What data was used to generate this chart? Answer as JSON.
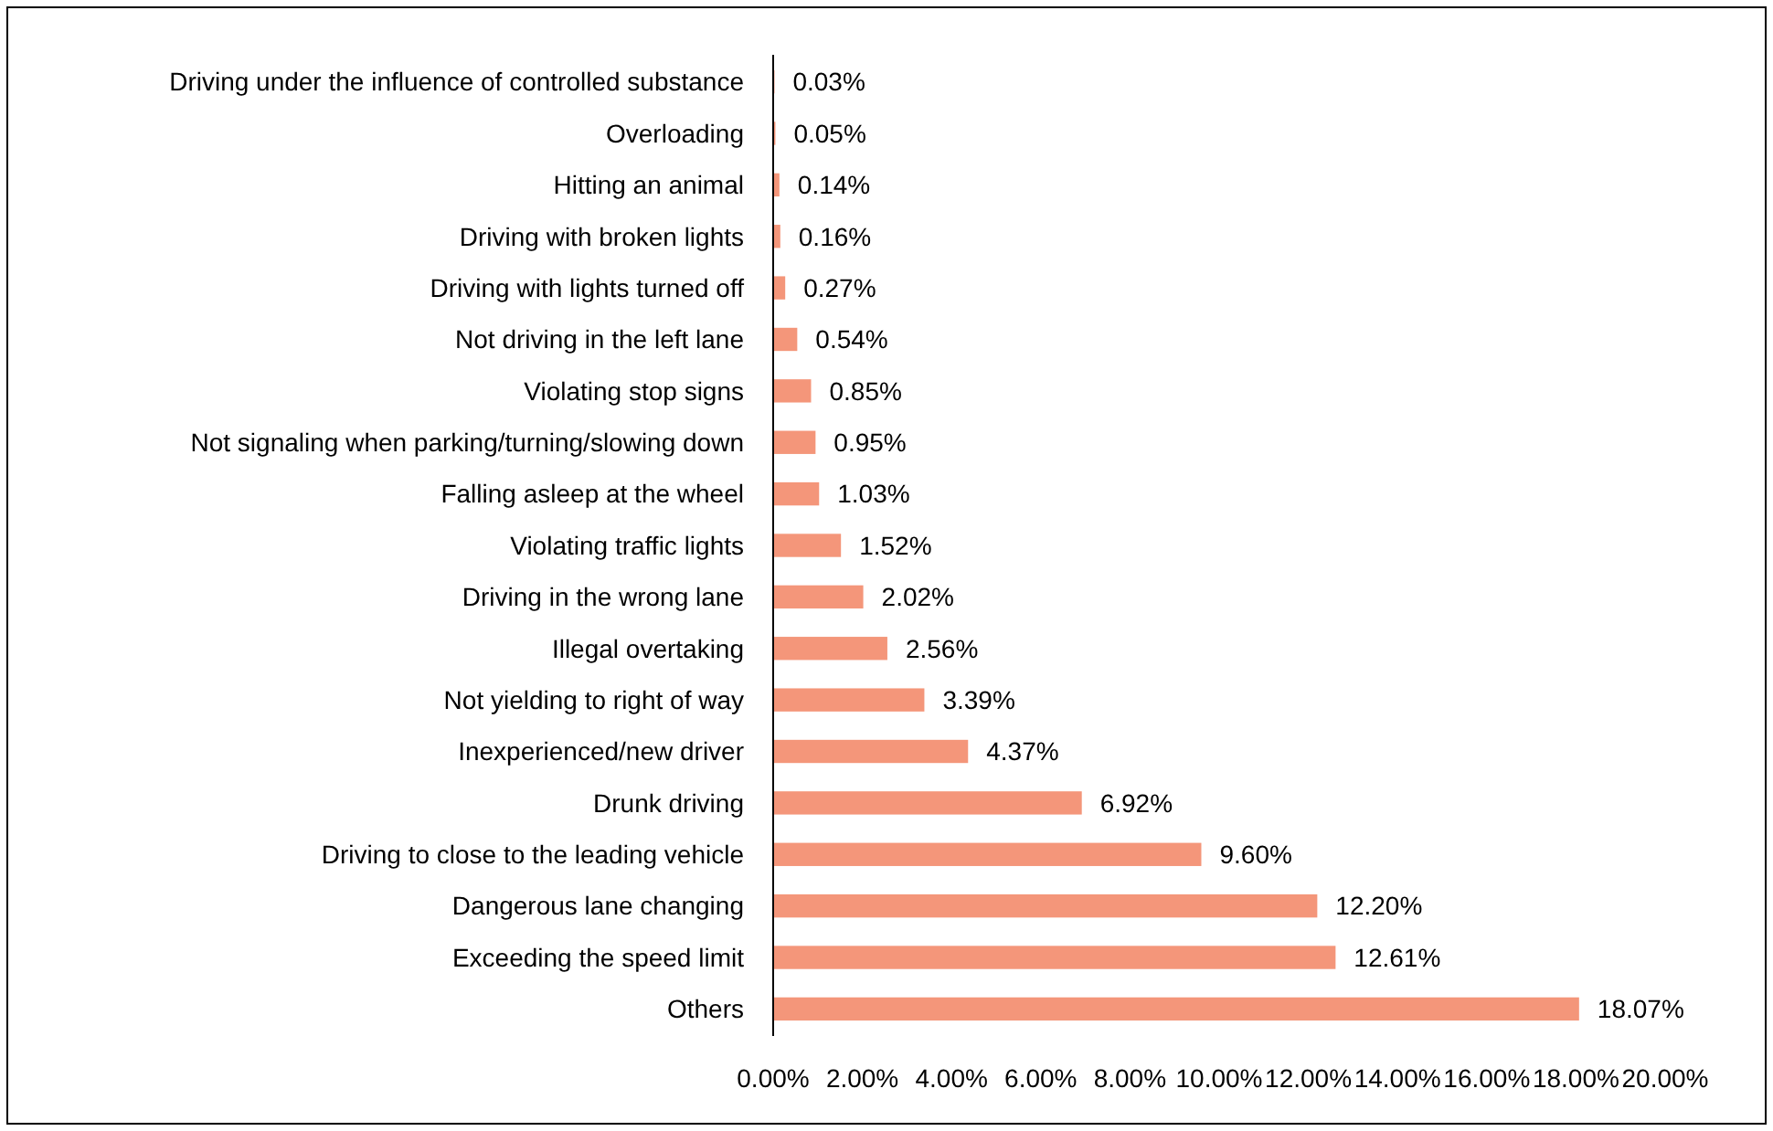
{
  "chart_data": {
    "type": "bar",
    "orientation": "horizontal",
    "categories": [
      "Driving under the influence of controlled substance",
      "Overloading",
      "Hitting an animal",
      "Driving with broken lights",
      "Driving with lights turned off",
      "Not driving in the left lane",
      "Violating stop signs",
      "Not signaling when parking/turning/slowing down",
      "Falling asleep at the wheel",
      "Violating traffic lights",
      "Driving in the wrong lane",
      "Illegal overtaking",
      "Not yielding to right of way",
      "Inexperienced/new driver",
      "Drunk driving",
      "Driving to close to the leading vehicle",
      "Dangerous lane changing",
      "Exceeding the speed limit",
      "Others"
    ],
    "values": [
      0.03,
      0.05,
      0.14,
      0.16,
      0.27,
      0.54,
      0.85,
      0.95,
      1.03,
      1.52,
      2.02,
      2.56,
      3.39,
      4.37,
      6.92,
      9.6,
      12.2,
      12.61,
      18.07
    ],
    "value_labels": [
      "0.03%",
      "0.05%",
      "0.14%",
      "0.16%",
      "0.27%",
      "0.54%",
      "0.85%",
      "0.95%",
      "1.03%",
      "1.52%",
      "2.02%",
      "2.56%",
      "3.39%",
      "4.37%",
      "6.92%",
      "9.60%",
      "12.20%",
      "12.61%",
      "18.07%"
    ],
    "color": "#f4967a",
    "xlim": [
      0,
      20
    ],
    "xticks": [
      {
        "value": 0,
        "label": "0.00%"
      },
      {
        "value": 2,
        "label": "2.00%"
      },
      {
        "value": 4,
        "label": "4.00%"
      },
      {
        "value": 6,
        "label": "6.00%"
      },
      {
        "value": 8,
        "label": "8.00%"
      },
      {
        "value": 10,
        "label": "10.00%"
      },
      {
        "value": 12,
        "label": "12.00%"
      },
      {
        "value": 14,
        "label": "14.00%"
      },
      {
        "value": 16,
        "label": "16.00%"
      },
      {
        "value": 18,
        "label": "18.00%"
      },
      {
        "value": 20,
        "label": "20.00%"
      }
    ],
    "grid": false
  }
}
